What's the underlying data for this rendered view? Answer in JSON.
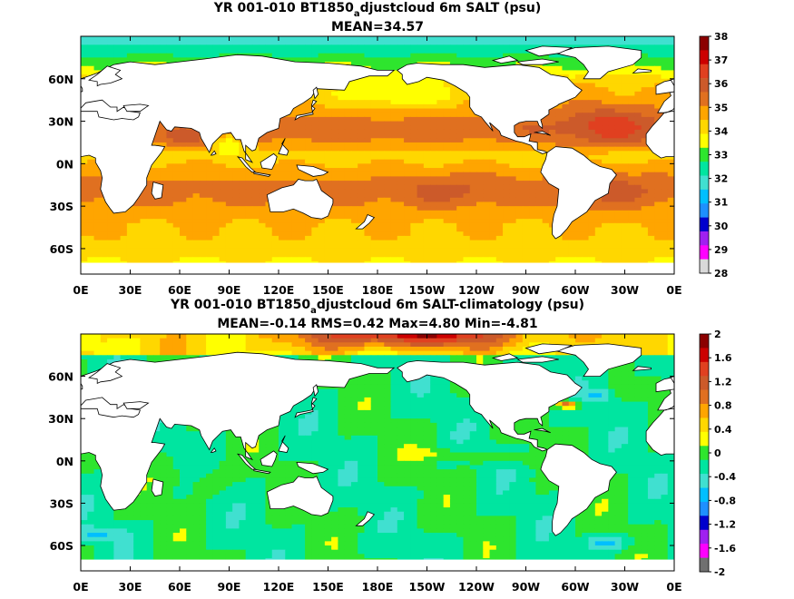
{
  "panels": [
    {
      "title_main": "YR 001-010 BT1850",
      "title_sub": "a",
      "title_rest": "djustcloud 6m SALT (psu)",
      "stats": "MEAN=34.57"
    },
    {
      "title_main": "YR 001-010 BT1850",
      "title_sub": "a",
      "title_rest": "djustcloud 6m SALT-climatology (psu)",
      "stats": "MEAN=-0.14   RMS=0.42   Max=4.80   Min=-4.81"
    }
  ],
  "chart_data": [
    {
      "type": "heatmap",
      "variable": "SALT",
      "units": "psu",
      "x_ticks": [
        "0E",
        "30E",
        "60E",
        "90E",
        "120E",
        "150E",
        "180E",
        "150W",
        "120W",
        "90W",
        "60W",
        "30W",
        "0E"
      ],
      "y_ticks": [
        "60N",
        "30N",
        "0N",
        "30S",
        "60S"
      ],
      "y_tick_lat": [
        60,
        30,
        0,
        -30,
        -60
      ],
      "lat_range": [
        -78,
        90
      ],
      "lon_range": [
        0,
        360
      ],
      "colorbar_ticks": [
        "38",
        "37",
        "36",
        "35",
        "34",
        "33",
        "32",
        "31",
        "30",
        "29",
        "28"
      ],
      "colorbar_range": [
        28,
        38
      ],
      "colors": [
        "#d9d9d9",
        "#ff00ff",
        "#a020f0",
        "#0000cd",
        "#1e90ff",
        "#00bfff",
        "#40e0d0",
        "#00e5a0",
        "#2ee52e",
        "#ffff00",
        "#ffd700",
        "#ffa500",
        "#e07020",
        "#cc5a2a",
        "#e04020",
        "#cc0000",
        "#8b0000"
      ]
    },
    {
      "type": "heatmap",
      "variable": "SALT-climatology",
      "units": "psu",
      "x_ticks": [
        "0E",
        "30E",
        "60E",
        "90E",
        "120E",
        "150E",
        "180E",
        "150W",
        "120W",
        "90W",
        "60W",
        "30W",
        "0E"
      ],
      "y_ticks": [
        "60N",
        "30N",
        "0N",
        "30S",
        "60S"
      ],
      "y_tick_lat": [
        60,
        30,
        0,
        -30,
        -60
      ],
      "lat_range": [
        -78,
        90
      ],
      "lon_range": [
        0,
        360
      ],
      "colorbar_ticks": [
        "2",
        "1.6",
        "1.2",
        "0.8",
        "0.4",
        "0",
        "-0.4",
        "-0.8",
        "-1.2",
        "-1.6",
        "-2"
      ],
      "colorbar_range": [
        -2,
        2
      ],
      "colors": [
        "#707070",
        "#ff00ff",
        "#a020f0",
        "#0000cd",
        "#1e90ff",
        "#00bfff",
        "#40e0d0",
        "#00e5a0",
        "#2ee52e",
        "#ffff00",
        "#ffd700",
        "#ffa500",
        "#e07020",
        "#cc5a2a",
        "#e04020",
        "#cc0000",
        "#8b0000"
      ]
    }
  ]
}
